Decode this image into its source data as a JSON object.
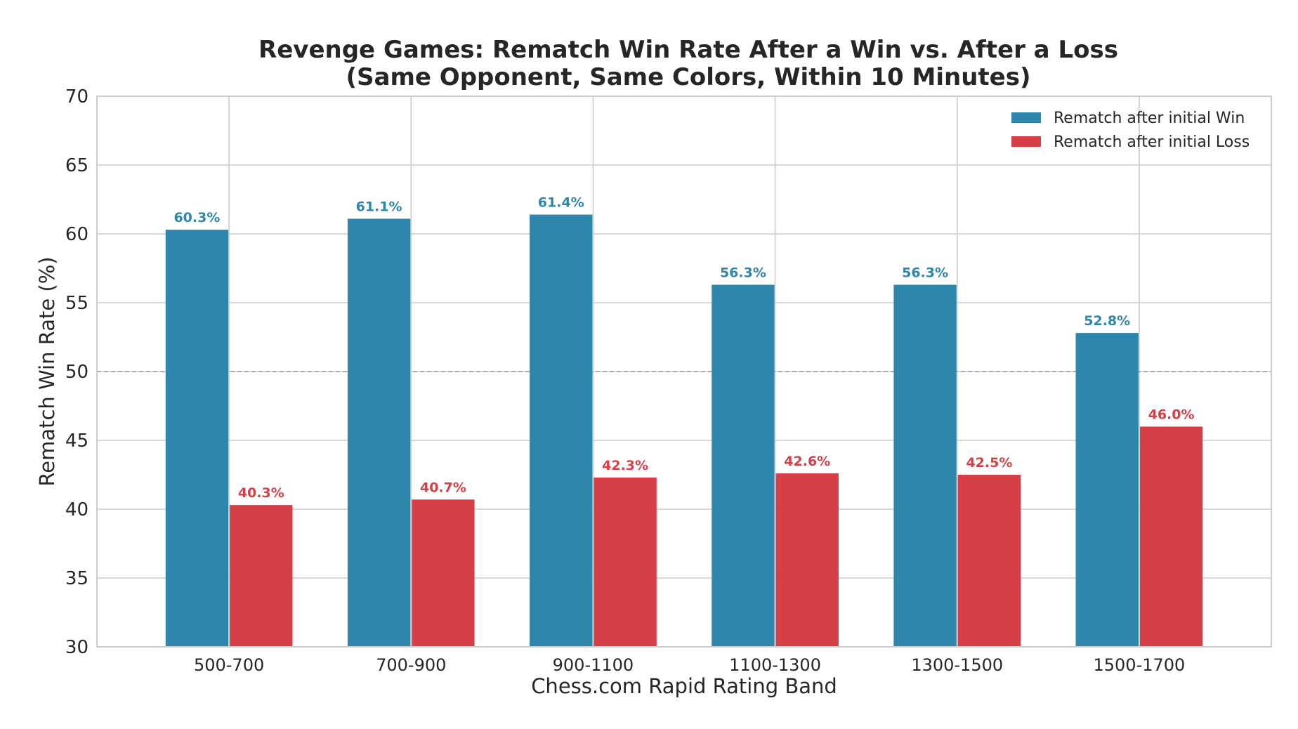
{
  "chart_data": {
    "type": "bar",
    "title": "Revenge Games: Rematch Win Rate After a Win vs. After a Loss",
    "subtitle": "(Same Opponent, Same Colors, Within 10 Minutes)",
    "xlabel": "Chess.com Rapid Rating Band",
    "ylabel": "Rematch Win Rate (%)",
    "ylim": [
      30,
      70
    ],
    "yticks": [
      30,
      35,
      40,
      45,
      50,
      55,
      60,
      65,
      70
    ],
    "categories": [
      "500-700",
      "700-900",
      "900-1100",
      "1100-1300",
      "1300-1500",
      "1500-1700"
    ],
    "series": [
      {
        "name": "Rematch after initial Win",
        "color": "#2e86ab",
        "values": [
          60.3,
          61.1,
          61.4,
          56.3,
          56.3,
          52.8
        ],
        "labels": [
          "60.3%",
          "61.1%",
          "61.4%",
          "56.3%",
          "56.3%",
          "52.8%"
        ]
      },
      {
        "name": "Rematch after initial Loss",
        "color": "#d63f46",
        "values": [
          40.3,
          40.7,
          42.3,
          42.6,
          42.5,
          46.0
        ],
        "labels": [
          "40.3%",
          "40.7%",
          "42.3%",
          "42.6%",
          "42.5%",
          "46.0%"
        ]
      }
    ],
    "reference_line": {
      "y": 50,
      "style": "dashed",
      "color": "#999999"
    },
    "grid": true,
    "legend_position": "top-right"
  }
}
